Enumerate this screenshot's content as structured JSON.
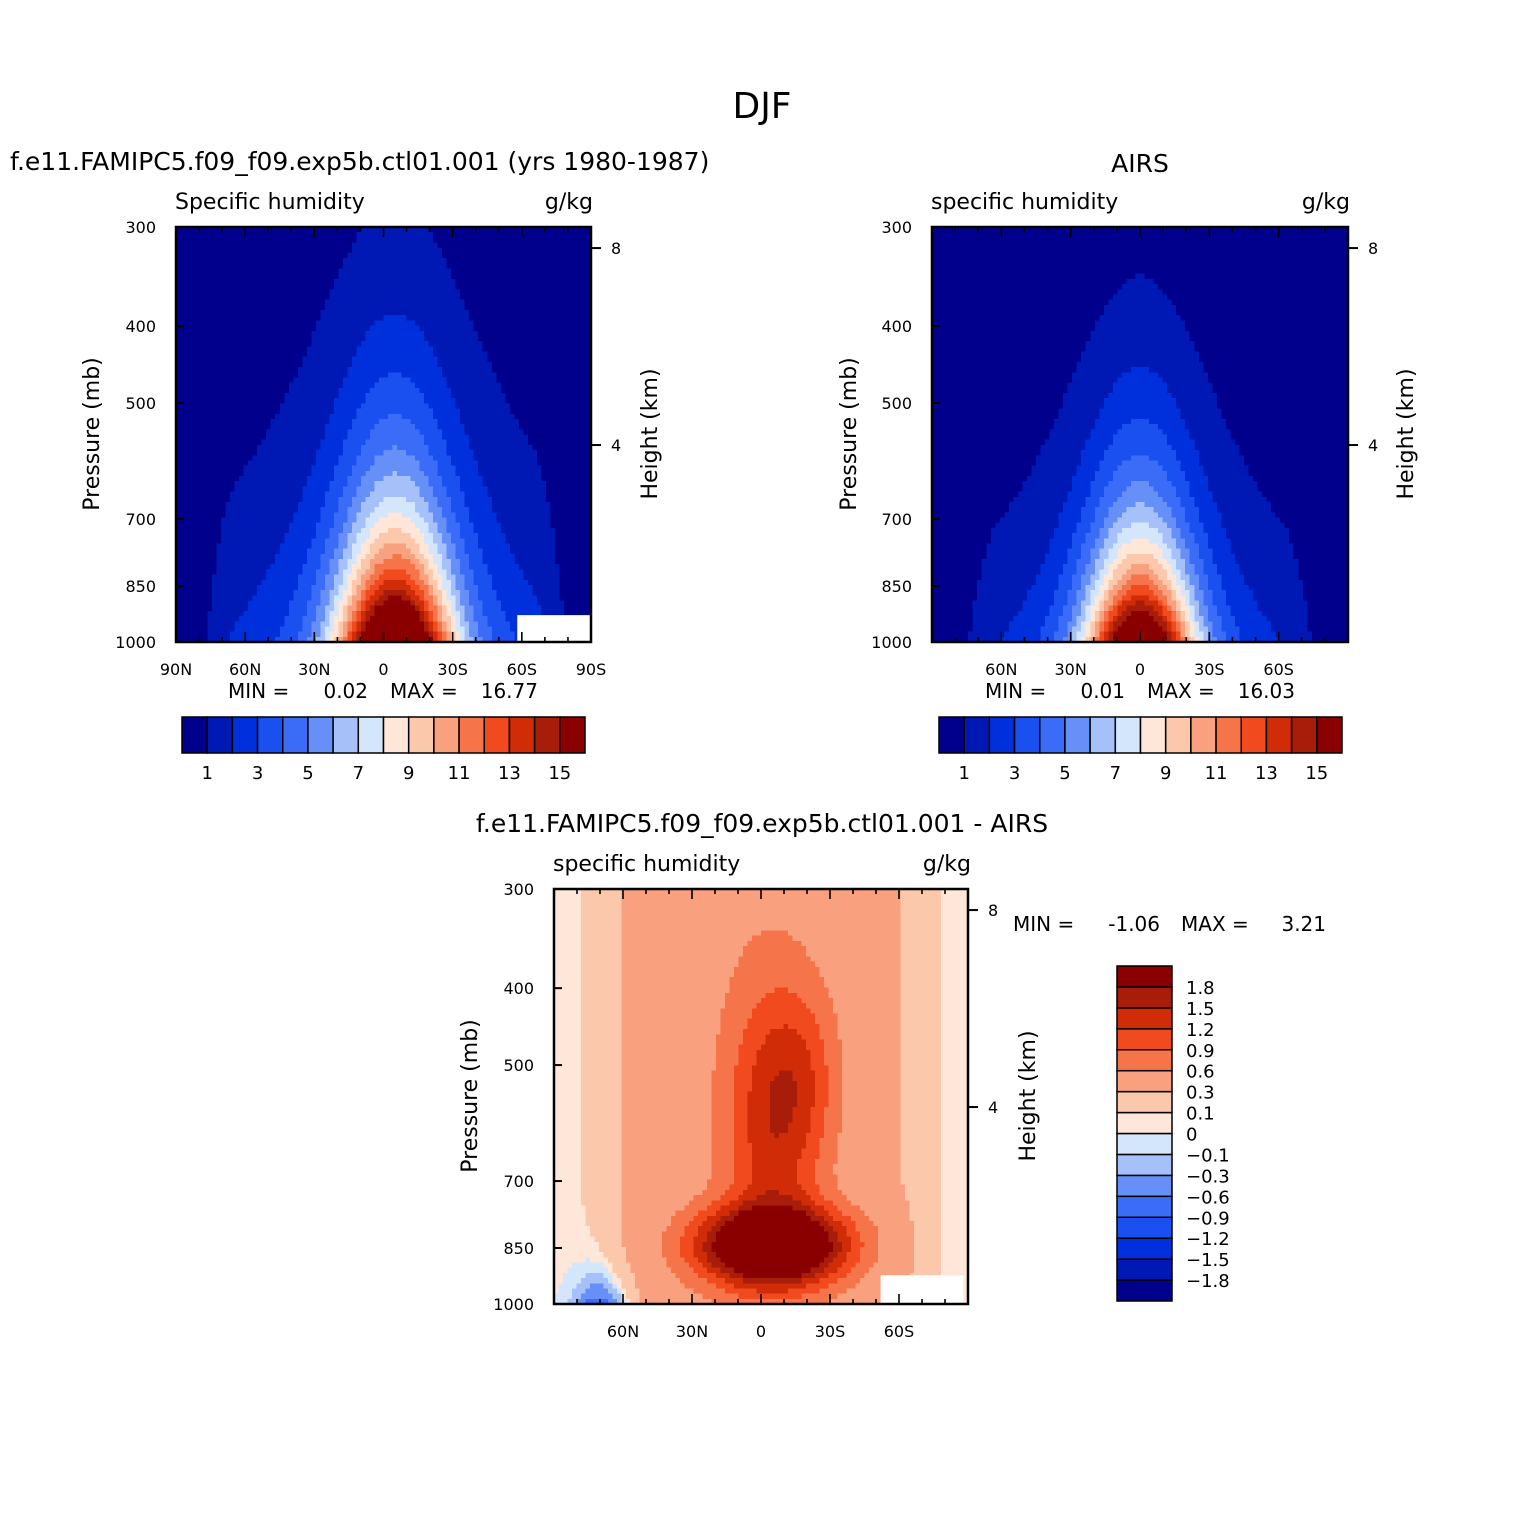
{
  "page_title": "DJF",
  "chart_data": [
    {
      "type": "heatmap",
      "panel": "model",
      "title": "f.e11.FAMIPC5.f09_f09.exp5b.ctl01.001 (yrs 1980-1987)",
      "variable": "Specific humidity",
      "units": "g/kg",
      "ylabel": "Pressure (mb)",
      "ylabel_right": "Height (km)",
      "pressure_ticks": [
        300,
        400,
        500,
        700,
        850,
        1000
      ],
      "height_ticks": [
        8,
        4
      ],
      "x_tick_labels": [
        "90N",
        "60N",
        "30N",
        "0",
        "30S",
        "60S",
        "90S"
      ],
      "x_tick_values": [
        90,
        60,
        30,
        0,
        -30,
        -60,
        -90
      ],
      "xlim": [
        90,
        -90
      ],
      "ylim": [
        1000,
        300
      ],
      "min_label": "MIN =",
      "min_value": "0.02",
      "max_label": "MAX =",
      "max_value": "16.77",
      "contour_levels": [
        1,
        2,
        3,
        4,
        5,
        6,
        7,
        8,
        9,
        10,
        11,
        12,
        13,
        14,
        15
      ],
      "colorbar_labels": [
        "1",
        "3",
        "5",
        "7",
        "9",
        "11",
        "13",
        "15"
      ],
      "colors": [
        "#00008c",
        "#0018b4",
        "#0030dc",
        "#1a50f0",
        "#3a6cf8",
        "#6690f8",
        "#a6c0fa",
        "#d4e6fc",
        "#fee6d8",
        "#fcc8ac",
        "#f9a07e",
        "#f5744a",
        "#f04a1e",
        "#d02c08",
        "#a81c0a",
        "#8a0000"
      ],
      "peak": {
        "lat": -5,
        "value": 16.77
      },
      "peak_level": 1000,
      "top_height_mb": 375,
      "hole": {
        "lat_from": -58,
        "lat_to": -90,
        "p_from": 925,
        "p_to": 1000
      }
    },
    {
      "type": "heatmap",
      "panel": "obs",
      "title": "AIRS",
      "variable": "specific humidity",
      "units": "g/kg",
      "ylabel": "Pressure (mb)",
      "ylabel_right": "Height (km)",
      "pressure_ticks": [
        300,
        400,
        500,
        700,
        850,
        1000
      ],
      "height_ticks": [
        8,
        4
      ],
      "x_tick_labels": [
        "60N",
        "30N",
        "0",
        "30S",
        "60S"
      ],
      "x_tick_values": [
        60,
        30,
        0,
        -30,
        -60
      ],
      "xlim": [
        90,
        -90
      ],
      "ylim": [
        1000,
        300
      ],
      "min_label": "MIN =",
      "min_value": "0.01",
      "max_label": "MAX =",
      "max_value": "16.03",
      "contour_levels": [
        1,
        2,
        3,
        4,
        5,
        6,
        7,
        8,
        9,
        10,
        11,
        12,
        13,
        14,
        15
      ],
      "colorbar_labels": [
        "1",
        "3",
        "5",
        "7",
        "9",
        "11",
        "13",
        "15"
      ],
      "colors": [
        "#00008c",
        "#0018b4",
        "#0030dc",
        "#1a50f0",
        "#3a6cf8",
        "#6690f8",
        "#a6c0fa",
        "#d4e6fc",
        "#fee6d8",
        "#fcc8ac",
        "#f9a07e",
        "#f5744a",
        "#f04a1e",
        "#d02c08",
        "#a81c0a",
        "#8a0000"
      ],
      "peak": {
        "lat": 0,
        "value": 16.03
      },
      "peak_level": 1000,
      "top_height_mb": 440
    },
    {
      "type": "heatmap",
      "panel": "diff",
      "title": "f.e11.FAMIPC5.f09_f09.exp5b.ctl01.001 - AIRS",
      "variable": "specific humidity",
      "units": "g/kg",
      "ylabel": "Pressure (mb)",
      "ylabel_right": "Height (km)",
      "pressure_ticks": [
        300,
        400,
        500,
        700,
        850,
        1000
      ],
      "height_ticks": [
        8,
        4
      ],
      "x_tick_labels": [
        "60N",
        "30N",
        "0",
        "30S",
        "60S"
      ],
      "x_tick_values": [
        60,
        30,
        0,
        -30,
        -60
      ],
      "xlim": [
        90,
        -90
      ],
      "ylim": [
        1000,
        300
      ],
      "min_label": "MIN =",
      "min_value": "-1.06",
      "max_label": "MAX =",
      "max_value": "3.21",
      "contour_levels": [
        -1.8,
        -1.5,
        -1.2,
        -0.9,
        -0.6,
        -0.3,
        -0.1,
        0,
        0.1,
        0.3,
        0.6,
        0.9,
        1.2,
        1.5,
        1.8
      ],
      "colorbar_labels": [
        "1.8",
        "1.5",
        "1.2",
        "0.9",
        "0.6",
        "0.3",
        "0.1",
        "0",
        "−0.1",
        "−0.3",
        "−0.6",
        "−0.9",
        "−1.2",
        "−1.5",
        "−1.8"
      ],
      "colors": [
        "#00008c",
        "#0018b4",
        "#0030dc",
        "#1a50f0",
        "#3a6cf8",
        "#6690f8",
        "#a6c0fa",
        "#d4e6fc",
        "#fee6d8",
        "#fcc8ac",
        "#f9a07e",
        "#f5744a",
        "#f04a1e",
        "#d02c08",
        "#a81c0a",
        "#8a0000"
      ],
      "hole": {
        "lat_from": -52,
        "lat_to": -88,
        "p_from": 920,
        "p_to": 1000
      }
    }
  ]
}
